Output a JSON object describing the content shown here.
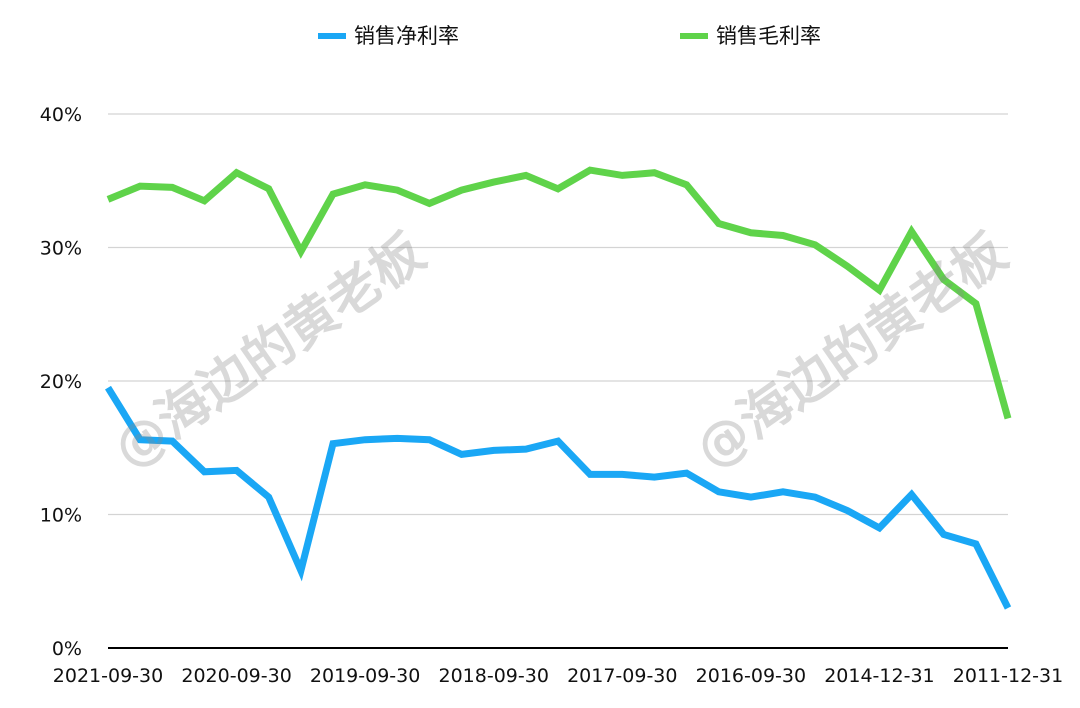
{
  "chart_data": {
    "type": "line",
    "title": "",
    "xlabel": "",
    "ylabel": "",
    "ylim": [
      0,
      40
    ],
    "y_ticks": [
      "0%",
      "10%",
      "20%",
      "30%",
      "40%"
    ],
    "y_tick_values": [
      0,
      10,
      20,
      30,
      40
    ],
    "grid": true,
    "legend_position": "top-center",
    "x_tick_labels": [
      "2021-09-30",
      "2020-09-30",
      "2019-09-30",
      "2018-09-30",
      "2017-09-30",
      "2016-09-30",
      "2014-12-31",
      "2011-12-31"
    ],
    "x_tick_indices": [
      0,
      4,
      8,
      12,
      16,
      20,
      24,
      28
    ],
    "point_count": 29,
    "series": [
      {
        "name": "销售净利率",
        "color": "#1aa7f5",
        "values": [
          19.5,
          15.6,
          15.5,
          13.2,
          13.3,
          11.3,
          5.8,
          15.3,
          15.6,
          15.7,
          15.6,
          14.5,
          14.8,
          14.9,
          15.5,
          13.0,
          13.0,
          12.8,
          13.1,
          11.7,
          11.3,
          11.7,
          11.3,
          10.3,
          9.0,
          11.5,
          8.5,
          7.8,
          3.0
        ]
      },
      {
        "name": "销售毛利率",
        "color": "#5fd34a",
        "values": [
          33.6,
          34.6,
          34.5,
          33.5,
          35.6,
          34.4,
          29.7,
          34.0,
          34.7,
          34.3,
          33.3,
          34.3,
          34.9,
          35.4,
          34.4,
          35.8,
          35.4,
          35.6,
          34.7,
          31.8,
          31.1,
          30.9,
          30.2,
          28.6,
          26.8,
          31.2,
          27.6,
          25.8,
          17.2
        ]
      }
    ]
  },
  "watermarks": [
    {
      "text": "@海边的黄老板"
    },
    {
      "text": "@海边的黄老板"
    }
  ]
}
